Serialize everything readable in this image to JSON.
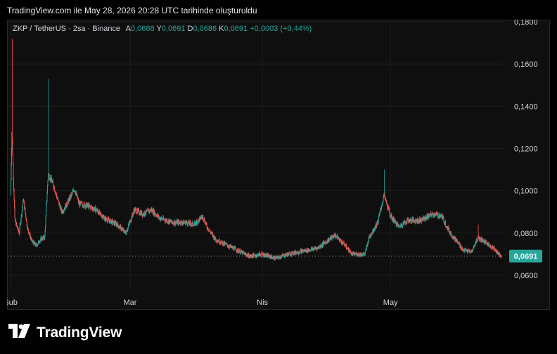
{
  "header": {
    "caption": "TradingView.com ile May 28, 2026 20:28 UTC tarihinde oluşturuldu"
  },
  "legend": {
    "symbol": "ZKP / TetherUS · 2sa · Binance",
    "open_label": "A",
    "open_value": "0,0688",
    "high_label": "Y",
    "high_value": "0,0691",
    "low_label": "D",
    "low_value": "0,0686",
    "close_label": "K",
    "close_value": "0,0691",
    "change": "+0,0003 (+0,44%)"
  },
  "price_badge": "0,0691",
  "footer": {
    "brand": "TradingView"
  },
  "colors": {
    "up": "#26a69a",
    "down": "#ef5350",
    "badge": "#26a69a",
    "grid": "#1f1f1f"
  },
  "chart_data": {
    "type": "candlestick",
    "title": "ZKP / TetherUS · 2sa · Binance",
    "y_ticks": [
      "0,1800",
      "0,1600",
      "0,1400",
      "0,1200",
      "0,1000",
      "0,0800",
      "0,0600"
    ],
    "y_tick_values": [
      0.18,
      0.16,
      0.14,
      0.12,
      0.1,
      0.08,
      0.06
    ],
    "x_ticks": [
      {
        "label": "Şub",
        "day": 0
      },
      {
        "label": "Mar",
        "day": 28
      },
      {
        "label": "Nis",
        "day": 59
      },
      {
        "label": "May",
        "day": 89
      }
    ],
    "ylim": [
      0.054,
      0.181
    ],
    "xlim_days": [
      -0.5,
      115.5
    ],
    "grid": true,
    "last_close": 0.0691,
    "key_points": [
      {
        "day": 0,
        "close": 0.098
      },
      {
        "day": 0.3,
        "close": 0.128,
        "high": 0.172
      },
      {
        "day": 1,
        "close": 0.086
      },
      {
        "day": 2,
        "close": 0.08
      },
      {
        "day": 3,
        "close": 0.096
      },
      {
        "day": 4,
        "close": 0.082
      },
      {
        "day": 5,
        "close": 0.076
      },
      {
        "day": 6,
        "close": 0.074
      },
      {
        "day": 7,
        "close": 0.077
      },
      {
        "day": 8,
        "close": 0.078
      },
      {
        "day": 8.8,
        "close": 0.108,
        "high": 0.153
      },
      {
        "day": 10,
        "close": 0.103
      },
      {
        "day": 11,
        "close": 0.096
      },
      {
        "day": 12,
        "close": 0.09
      },
      {
        "day": 13,
        "close": 0.093
      },
      {
        "day": 15,
        "close": 0.101
      },
      {
        "day": 16,
        "close": 0.094
      },
      {
        "day": 18,
        "close": 0.093
      },
      {
        "day": 20,
        "close": 0.091
      },
      {
        "day": 22,
        "close": 0.087
      },
      {
        "day": 25,
        "close": 0.084
      },
      {
        "day": 27,
        "close": 0.08
      },
      {
        "day": 29,
        "close": 0.091
      },
      {
        "day": 31,
        "close": 0.089
      },
      {
        "day": 33,
        "close": 0.091
      },
      {
        "day": 35,
        "close": 0.087
      },
      {
        "day": 38,
        "close": 0.085
      },
      {
        "day": 41,
        "close": 0.085
      },
      {
        "day": 43,
        "close": 0.084
      },
      {
        "day": 45,
        "close": 0.088
      },
      {
        "day": 46,
        "close": 0.083
      },
      {
        "day": 48,
        "close": 0.077
      },
      {
        "day": 50,
        "close": 0.075
      },
      {
        "day": 53,
        "close": 0.072
      },
      {
        "day": 56,
        "close": 0.069
      },
      {
        "day": 59,
        "close": 0.07
      },
      {
        "day": 62,
        "close": 0.068
      },
      {
        "day": 65,
        "close": 0.07
      },
      {
        "day": 67,
        "close": 0.071
      },
      {
        "day": 70,
        "close": 0.072
      },
      {
        "day": 72,
        "close": 0.073
      },
      {
        "day": 74,
        "close": 0.076
      },
      {
        "day": 76,
        "close": 0.079
      },
      {
        "day": 78,
        "close": 0.075
      },
      {
        "day": 80,
        "close": 0.07
      },
      {
        "day": 83,
        "close": 0.07
      },
      {
        "day": 84,
        "close": 0.078
      },
      {
        "day": 86,
        "close": 0.085
      },
      {
        "day": 87.5,
        "close": 0.098,
        "high": 0.11
      },
      {
        "day": 89,
        "close": 0.088
      },
      {
        "day": 91,
        "close": 0.083
      },
      {
        "day": 93,
        "close": 0.086
      },
      {
        "day": 96,
        "close": 0.086
      },
      {
        "day": 99,
        "close": 0.089
      },
      {
        "day": 101,
        "close": 0.088
      },
      {
        "day": 103,
        "close": 0.08
      },
      {
        "day": 105,
        "close": 0.075
      },
      {
        "day": 106,
        "close": 0.072
      },
      {
        "day": 108,
        "close": 0.071
      },
      {
        "day": 109.5,
        "close": 0.078,
        "high": 0.084
      },
      {
        "day": 111,
        "close": 0.076
      },
      {
        "day": 113,
        "close": 0.073
      },
      {
        "day": 115,
        "close": 0.0691
      }
    ]
  }
}
